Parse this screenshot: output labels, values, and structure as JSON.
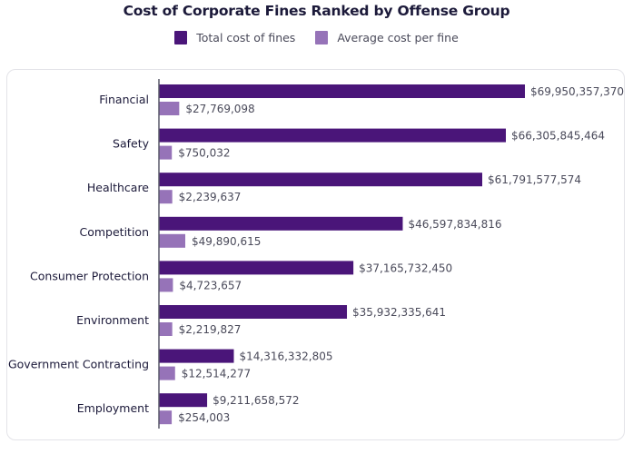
{
  "chart_data": {
    "type": "bar",
    "orientation": "horizontal",
    "title": "Cost of Corporate Fines Ranked by Offense Group",
    "xlabel": "",
    "ylabel": "",
    "legend_position": "top-center",
    "grid": false,
    "categories": [
      "Financial",
      "Safety",
      "Healthcare",
      "Competition",
      "Consumer Protection",
      "Environment",
      "Government Contracting",
      "Employment"
    ],
    "series": [
      {
        "name": "Total cost of fines",
        "color": "#4a1579",
        "values": [
          69950357370,
          66305845464,
          61791577574,
          46597834816,
          37165732450,
          35932335641,
          14316332805,
          9211658572
        ],
        "labels": [
          "$69,950,357,370",
          "$66,305,845,464",
          "$61,791,577,574",
          "$46,597,834,816",
          "$37,165,732,450",
          "$35,932,335,641",
          "$14,316,332,805",
          "$9,211,658,572"
        ]
      },
      {
        "name": "Average cost per fine",
        "color": "#9673b8",
        "values": [
          27769098,
          750032,
          2239637,
          49890615,
          4723657,
          2219827,
          12514277,
          254003
        ],
        "labels": [
          "$27,769,098",
          "$750,032",
          "$2,239,637",
          "$49,890,615",
          "$4,723,657",
          "$2,219,827",
          "$12,514,277",
          "$254,003"
        ]
      }
    ]
  }
}
